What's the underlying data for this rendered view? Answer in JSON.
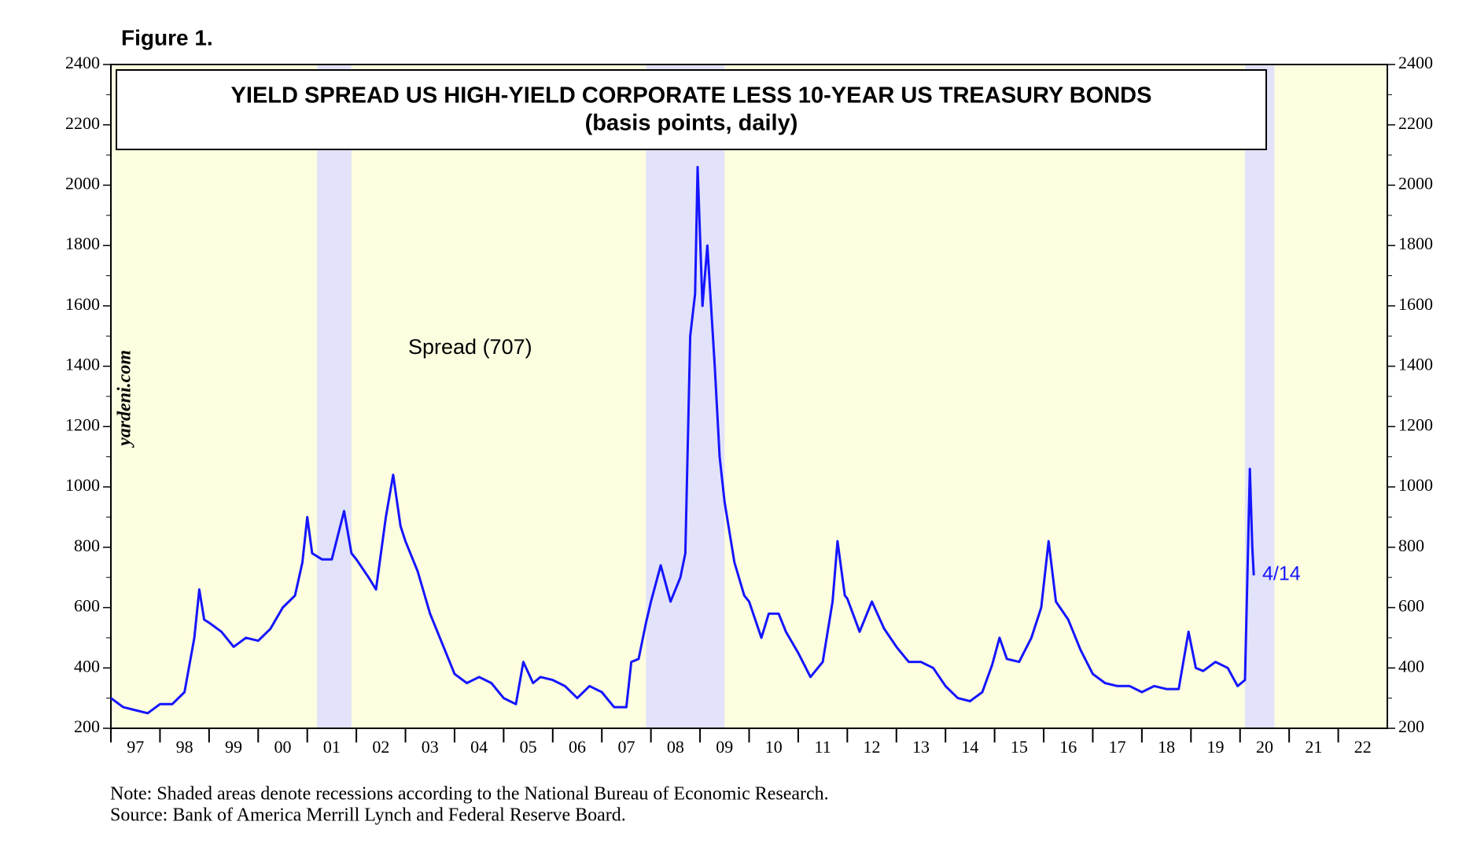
{
  "figure_label": "Figure 1.",
  "chart_data": {
    "type": "line",
    "title": "YIELD SPREAD US HIGH-YIELD CORPORATE LESS 10-YEAR US TREASURY BONDS",
    "subtitle": "(basis points, daily)",
    "series": [
      {
        "name": "Spread (707)",
        "color": "#1515ff",
        "x": [
          1997.0,
          1997.25,
          1997.5,
          1997.75,
          1998.0,
          1998.25,
          1998.5,
          1998.7,
          1998.8,
          1998.9,
          1999.0,
          1999.25,
          1999.5,
          1999.75,
          2000.0,
          2000.25,
          2000.5,
          2000.75,
          2000.9,
          2001.0,
          2001.1,
          2001.3,
          2001.5,
          2001.75,
          2001.9,
          2002.0,
          2002.25,
          2002.4,
          2002.6,
          2002.75,
          2002.9,
          2003.0,
          2003.25,
          2003.5,
          2003.75,
          2004.0,
          2004.25,
          2004.5,
          2004.75,
          2005.0,
          2005.25,
          2005.4,
          2005.6,
          2005.75,
          2006.0,
          2006.25,
          2006.5,
          2006.75,
          2007.0,
          2007.25,
          2007.5,
          2007.6,
          2007.75,
          2007.9,
          2008.0,
          2008.2,
          2008.4,
          2008.6,
          2008.7,
          2008.8,
          2008.9,
          2008.95,
          2009.05,
          2009.15,
          2009.3,
          2009.4,
          2009.5,
          2009.7,
          2009.9,
          2010.0,
          2010.25,
          2010.4,
          2010.6,
          2010.75,
          2011.0,
          2011.25,
          2011.5,
          2011.7,
          2011.8,
          2011.95,
          2012.0,
          2012.25,
          2012.5,
          2012.75,
          2013.0,
          2013.25,
          2013.5,
          2013.75,
          2014.0,
          2014.25,
          2014.5,
          2014.75,
          2014.95,
          2015.1,
          2015.25,
          2015.5,
          2015.75,
          2015.95,
          2016.1,
          2016.25,
          2016.5,
          2016.75,
          2017.0,
          2017.25,
          2017.5,
          2017.75,
          2018.0,
          2018.25,
          2018.5,
          2018.75,
          2018.95,
          2019.1,
          2019.25,
          2019.5,
          2019.75,
          2019.95,
          2020.1,
          2020.2,
          2020.25,
          2020.28
        ],
        "values": [
          300,
          270,
          260,
          250,
          280,
          280,
          320,
          500,
          660,
          560,
          550,
          520,
          470,
          500,
          490,
          530,
          600,
          640,
          750,
          900,
          780,
          760,
          760,
          920,
          780,
          760,
          700,
          660,
          900,
          1040,
          870,
          820,
          720,
          580,
          480,
          380,
          350,
          370,
          350,
          300,
          280,
          420,
          350,
          370,
          360,
          340,
          300,
          340,
          320,
          270,
          270,
          420,
          430,
          550,
          620,
          740,
          620,
          700,
          780,
          1500,
          1640,
          2060,
          1600,
          1800,
          1400,
          1100,
          950,
          750,
          640,
          620,
          500,
          580,
          580,
          520,
          450,
          370,
          420,
          620,
          820,
          640,
          630,
          520,
          620,
          530,
          470,
          420,
          420,
          400,
          340,
          300,
          290,
          320,
          410,
          500,
          430,
          420,
          500,
          600,
          820,
          620,
          560,
          460,
          380,
          350,
          340,
          340,
          320,
          340,
          330,
          330,
          520,
          400,
          390,
          420,
          400,
          340,
          360,
          1060,
          800,
          707
        ]
      }
    ],
    "annotations": [
      "4/14",
      "yardeni.com"
    ],
    "recessions": [
      [
        2001.2,
        2001.9
      ],
      [
        2007.9,
        2009.5
      ],
      [
        2020.1,
        2020.7
      ]
    ],
    "xlim": [
      1997,
      2023
    ],
    "xticks": [
      {
        "value": 1997,
        "label": "97"
      },
      {
        "value": 1998,
        "label": "98"
      },
      {
        "value": 1999,
        "label": "99"
      },
      {
        "value": 2000,
        "label": "00"
      },
      {
        "value": 2001,
        "label": "01"
      },
      {
        "value": 2002,
        "label": "02"
      },
      {
        "value": 2003,
        "label": "03"
      },
      {
        "value": 2004,
        "label": "04"
      },
      {
        "value": 2005,
        "label": "05"
      },
      {
        "value": 2006,
        "label": "06"
      },
      {
        "value": 2007,
        "label": "07"
      },
      {
        "value": 2008,
        "label": "08"
      },
      {
        "value": 2009,
        "label": "09"
      },
      {
        "value": 2010,
        "label": "10"
      },
      {
        "value": 2011,
        "label": "11"
      },
      {
        "value": 2012,
        "label": "12"
      },
      {
        "value": 2013,
        "label": "13"
      },
      {
        "value": 2014,
        "label": "14"
      },
      {
        "value": 2015,
        "label": "15"
      },
      {
        "value": 2016,
        "label": "16"
      },
      {
        "value": 2017,
        "label": "17"
      },
      {
        "value": 2018,
        "label": "18"
      },
      {
        "value": 2019,
        "label": "19"
      },
      {
        "value": 2020,
        "label": "20"
      },
      {
        "value": 2021,
        "label": "21"
      },
      {
        "value": 2022,
        "label": "22"
      }
    ],
    "ylim": [
      200,
      2400
    ],
    "yticks": [
      200,
      400,
      600,
      800,
      1000,
      1200,
      1400,
      1600,
      1800,
      2000,
      2200,
      2400
    ],
    "notes": [
      "Note: Shaded areas denote recessions according to the National Bureau of Economic Research.",
      "Source: Bank of America Merrill Lynch and Federal Reserve Board."
    ]
  }
}
